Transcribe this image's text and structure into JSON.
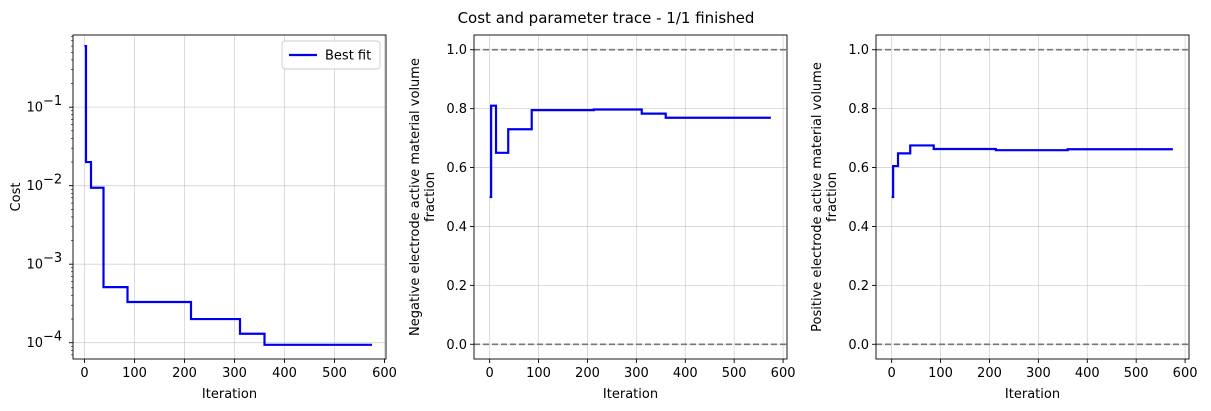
{
  "figure": {
    "title": "Cost and parameter trace - 1/1 finished"
  },
  "chart_data": [
    {
      "type": "line",
      "title": "",
      "xlabel": "Iteration",
      "ylabel": "Cost",
      "yscale": "log",
      "xlim": [
        -23,
        603
      ],
      "ylim": [
        6.2e-05,
        0.83
      ],
      "xticks": [
        0,
        100,
        200,
        300,
        400,
        500,
        600
      ],
      "xtick_labels": [
        "0",
        "100",
        "200",
        "300",
        "400",
        "500",
        "600"
      ],
      "yticks": [
        0.0001,
        0.001,
        0.01,
        0.1
      ],
      "ytick_labels": [
        "10",
        "10",
        "10",
        "10"
      ],
      "ytick_exponents": [
        "−4",
        "−3",
        "−2",
        "−1"
      ],
      "grid": true,
      "legend_position": "upper-right",
      "series": [
        {
          "name": "Best fit",
          "color": "#0000ee",
          "step": true,
          "x": [
            0,
            3,
            13,
            38,
            86,
            213,
            311,
            360,
            575
          ],
          "y": [
            0.6,
            0.02,
            0.0094,
            0.00051,
            0.00033,
            0.0002,
            0.00013,
            9.4e-05,
            9.4e-05
          ]
        }
      ]
    },
    {
      "type": "line",
      "title": "",
      "xlabel": "Iteration",
      "ylabel": "Negative electrode active material volume fraction",
      "ylabel_lines": [
        "Negative electrode active material volume",
        "fraction"
      ],
      "xlim": [
        -32,
        608
      ],
      "ylim": [
        -0.05,
        1.05
      ],
      "xticks": [
        0,
        100,
        200,
        300,
        400,
        500,
        600
      ],
      "xtick_labels": [
        "0",
        "100",
        "200",
        "300",
        "400",
        "500",
        "600"
      ],
      "yticks": [
        0.0,
        0.2,
        0.4,
        0.6,
        0.8,
        1.0
      ],
      "ytick_labels": [
        "0.0",
        "0.2",
        "0.4",
        "0.6",
        "0.8",
        "1.0"
      ],
      "grid": true,
      "bounds": [
        0.0,
        1.0
      ],
      "bounds_color": "#777777",
      "series": [
        {
          "color": "#0000ee",
          "step": true,
          "x": [
            0,
            3,
            13,
            38,
            86,
            213,
            311,
            360,
            575
          ],
          "y": [
            0.5,
            0.81,
            0.65,
            0.73,
            0.795,
            0.797,
            0.783,
            0.769,
            0.769
          ]
        }
      ]
    },
    {
      "type": "line",
      "title": "",
      "xlabel": "Iteration",
      "ylabel": "Positive electrode active material volume fraction",
      "ylabel_lines": [
        "Positive electrode active material volume",
        "fraction"
      ],
      "xlim": [
        -32,
        608
      ],
      "ylim": [
        -0.05,
        1.05
      ],
      "xticks": [
        0,
        100,
        200,
        300,
        400,
        500,
        600
      ],
      "xtick_labels": [
        "0",
        "100",
        "200",
        "300",
        "400",
        "500",
        "600"
      ],
      "yticks": [
        0.0,
        0.2,
        0.4,
        0.6,
        0.8,
        1.0
      ],
      "ytick_labels": [
        "0.0",
        "0.2",
        "0.4",
        "0.6",
        "0.8",
        "1.0"
      ],
      "grid": true,
      "bounds": [
        0.0,
        1.0
      ],
      "bounds_color": "#777777",
      "series": [
        {
          "color": "#0000ee",
          "step": true,
          "x": [
            0,
            3,
            13,
            38,
            86,
            213,
            360,
            575
          ],
          "y": [
            0.5,
            0.605,
            0.648,
            0.675,
            0.663,
            0.659,
            0.662,
            0.662
          ]
        }
      ]
    }
  ]
}
